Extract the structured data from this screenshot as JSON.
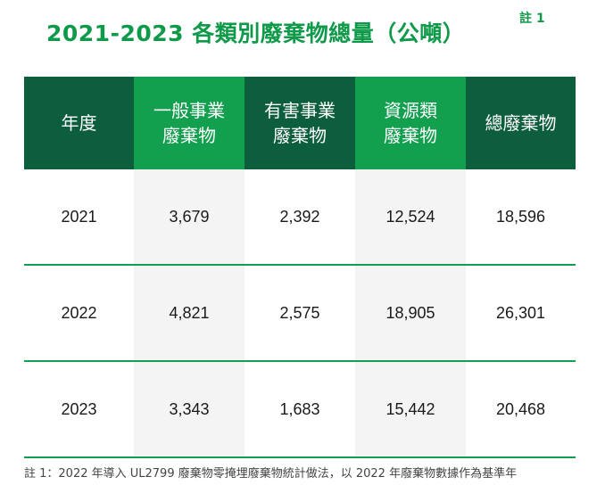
{
  "title": "2021-2023 各類別廢棄物總量（公噸）",
  "note_mark": "註 1",
  "table": {
    "headers": [
      {
        "line1": "年度",
        "line2": ""
      },
      {
        "line1": "一般事業",
        "line2": "廢棄物"
      },
      {
        "line1": "有害事業",
        "line2": "廢棄物"
      },
      {
        "line1": "資源類",
        "line2": "廢棄物"
      },
      {
        "line1": "總廢棄物",
        "line2": ""
      }
    ],
    "rows": [
      [
        "2021",
        "3,679",
        "2,392",
        "12,524",
        "18,596"
      ],
      [
        "2022",
        "4,821",
        "2,575",
        "18,905",
        "26,301"
      ],
      [
        "2023",
        "3,343",
        "1,683",
        "15,442",
        "20,468"
      ]
    ]
  },
  "footnote": "註 1：2022 年導入 UL2799 廢棄物零掩埋廢棄物統計做法，以 2022 年廢棄物數據作為基準年"
}
